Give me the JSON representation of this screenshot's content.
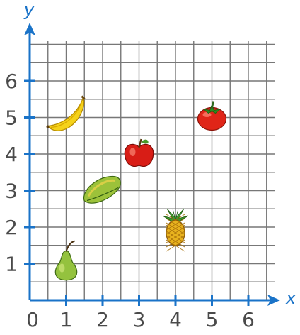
{
  "axes": {
    "x_title": "x",
    "y_title": "y",
    "origin_label": "0",
    "x_ticks": [
      "1",
      "2",
      "3",
      "4",
      "5",
      "6"
    ],
    "y_ticks": [
      "1",
      "2",
      "3",
      "4",
      "5",
      "6"
    ]
  },
  "colors": {
    "axis": "#1a73c8",
    "grid": "#777777",
    "tick_text": "#4a4a4a"
  },
  "chart_data": {
    "type": "scatter",
    "xlim": [
      0,
      6.5
    ],
    "ylim": [
      0,
      7
    ],
    "grid": true,
    "points": [
      {
        "icon": "banana-icon",
        "x": 1,
        "y": 5
      },
      {
        "icon": "tomato-icon",
        "x": 5,
        "y": 5
      },
      {
        "icon": "apple-icon",
        "x": 3,
        "y": 4
      },
      {
        "icon": "papaya-icon",
        "x": 2,
        "y": 3
      },
      {
        "icon": "pineapple-icon",
        "x": 4,
        "y": 2
      },
      {
        "icon": "pear-icon",
        "x": 1,
        "y": 1
      }
    ]
  }
}
